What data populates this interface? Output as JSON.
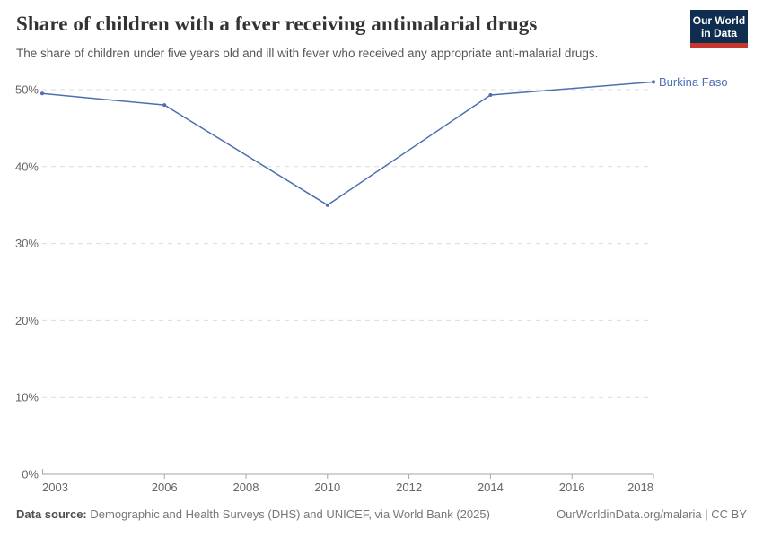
{
  "header": {
    "title": "Share of children with a fever receiving antimalarial drugs",
    "subtitle": "The share of children under five years old and ill with fever who received any appropriate anti-malarial drugs.",
    "logo": {
      "line1": "Our World",
      "line2": "in Data",
      "bg_color": "#0F2D4F",
      "bar_color": "#C6362C"
    }
  },
  "chart_data": {
    "type": "line",
    "title": "Share of children with a fever receiving antimalarial drugs",
    "entity": "Burkina Faso",
    "x": [
      2003,
      2006,
      2010,
      2014,
      2018
    ],
    "series": [
      {
        "name": "Burkina Faso",
        "values": [
          49.5,
          48,
          35,
          49.3,
          51
        ]
      }
    ],
    "unit": "%",
    "xlim": [
      2003,
      2018
    ],
    "ylim": [
      0,
      52
    ],
    "x_ticks": [
      2003,
      2006,
      2008,
      2010,
      2012,
      2014,
      2016,
      2018
    ],
    "y_ticks": [
      0,
      10,
      20,
      30,
      40,
      50
    ],
    "grid": "horizontal-dashed",
    "legend_position": "end-of-line-label",
    "colors": {
      "line": "#4D6FB0",
      "grid": "#DCDCDC",
      "axis": "#A5A5A5",
      "tick_label": "#666666"
    }
  },
  "footer": {
    "datasource_label": "Data source:",
    "datasource_text": "Demographic and Health Surveys (DHS) and UNICEF, via World Bank (2025)",
    "attribution": "OurWorldinData.org/malaria | CC BY"
  }
}
